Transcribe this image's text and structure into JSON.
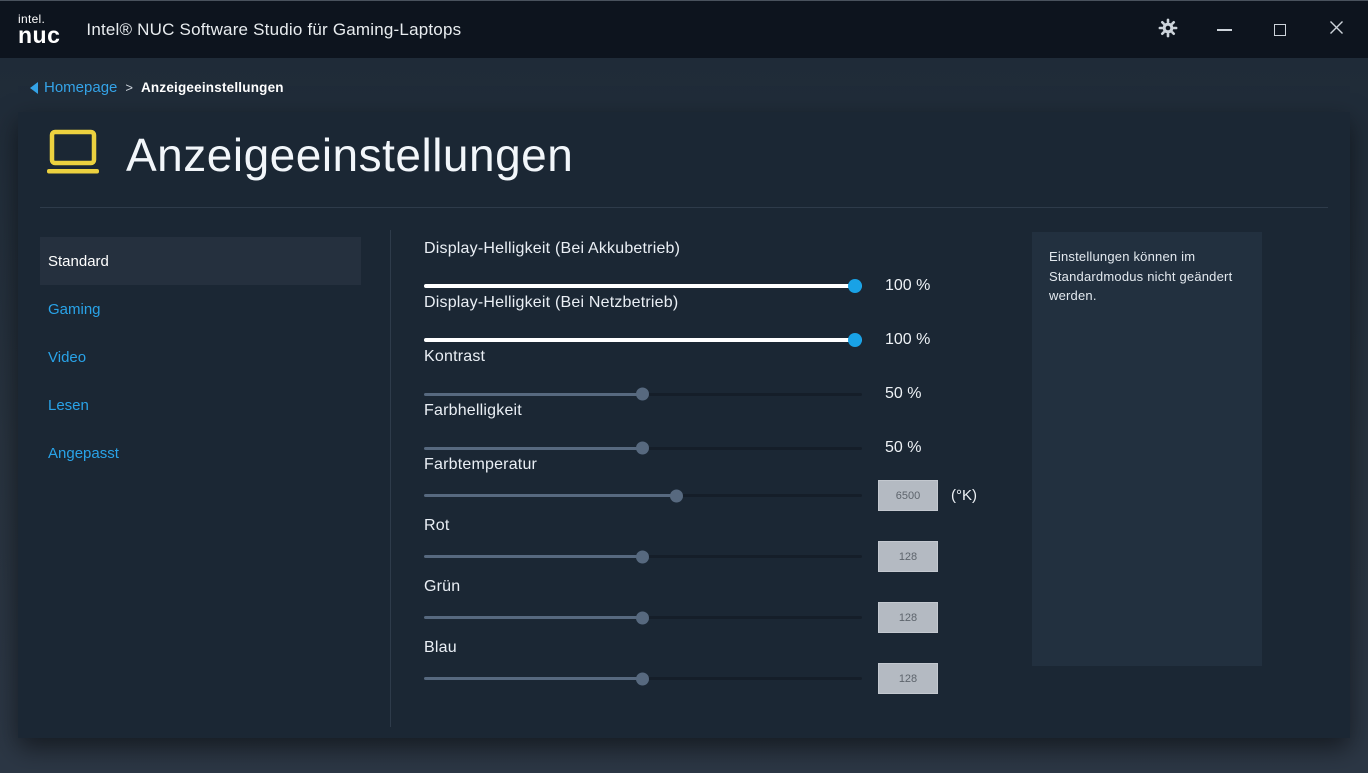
{
  "titlebar": {
    "logo_top": "intel.",
    "logo_bottom": "nuc",
    "title": "Intel® NUC Software Studio für Gaming-Laptops"
  },
  "breadcrumb": {
    "back_label": "Homepage",
    "separator": ">",
    "current": "Anzeigeeinstellungen"
  },
  "page": {
    "title": "Anzeigeeinstellungen"
  },
  "sidebar": {
    "items": [
      {
        "label": "Standard",
        "selected": true
      },
      {
        "label": "Gaming",
        "selected": false
      },
      {
        "label": "Video",
        "selected": false
      },
      {
        "label": "Lesen",
        "selected": false
      },
      {
        "label": "Angepasst",
        "selected": false
      }
    ]
  },
  "sliders": [
    {
      "label": "Display-Helligkeit (Bei Akkubetrieb)",
      "percent": 100,
      "display": "100 %",
      "kind": "percent",
      "enabled": true
    },
    {
      "label": "Display-Helligkeit (Bei Netzbetrieb)",
      "percent": 100,
      "display": "100 %",
      "kind": "percent",
      "enabled": true
    },
    {
      "label": "Kontrast",
      "percent": 50,
      "display": "50 %",
      "kind": "percent",
      "enabled": false
    },
    {
      "label": "Farbhelligkeit",
      "percent": 50,
      "display": "50 %",
      "kind": "percent",
      "enabled": false
    },
    {
      "label": "Farbtemperatur",
      "percent": 58,
      "display": "6500",
      "kind": "input",
      "unit": "(°K)",
      "enabled": false
    },
    {
      "label": "Rot",
      "percent": 50,
      "display": "128",
      "kind": "input",
      "enabled": false
    },
    {
      "label": "Grün",
      "percent": 50,
      "display": "128",
      "kind": "input",
      "enabled": false
    },
    {
      "label": "Blau",
      "percent": 50,
      "display": "128",
      "kind": "input",
      "enabled": false
    }
  ],
  "info_panel": {
    "text": "Einstellungen können im Standardmodus nicht geändert werden."
  },
  "colors": {
    "accent_blue": "#29a3e8",
    "slider_thumb_active": "#19a2e6",
    "slider_disabled": "#57697f",
    "icon_yellow": "#ecd13f",
    "card_bg": "#1b2734",
    "titlebar_bg": "#0d141e"
  }
}
